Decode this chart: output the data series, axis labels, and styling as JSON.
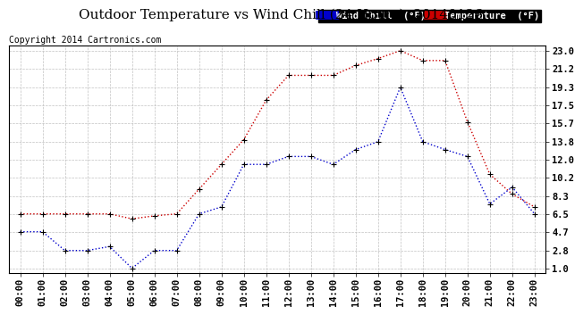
{
  "title": "Outdoor Temperature vs Wind Chill (24 Hours)  20140126",
  "copyright": "Copyright 2014 Cartronics.com",
  "legend_wind_chill": "Wind Chill  (°F)",
  "legend_temperature": "Temperature  (°F)",
  "x_labels": [
    "00:00",
    "01:00",
    "02:00",
    "03:00",
    "04:00",
    "05:00",
    "06:00",
    "07:00",
    "08:00",
    "09:00",
    "10:00",
    "11:00",
    "12:00",
    "13:00",
    "14:00",
    "15:00",
    "16:00",
    "17:00",
    "18:00",
    "19:00",
    "20:00",
    "21:00",
    "22:00",
    "23:00"
  ],
  "temperature": [
    6.5,
    6.5,
    6.5,
    6.5,
    6.5,
    6.0,
    6.3,
    6.5,
    9.0,
    11.5,
    14.0,
    18.0,
    20.5,
    20.5,
    20.5,
    21.5,
    22.2,
    23.0,
    22.0,
    22.0,
    15.8,
    10.5,
    8.5,
    7.2
  ],
  "wind_chill": [
    4.7,
    4.7,
    2.8,
    2.8,
    3.2,
    1.0,
    2.8,
    2.8,
    6.5,
    7.2,
    11.5,
    11.5,
    12.3,
    12.3,
    11.5,
    13.0,
    13.8,
    19.3,
    13.8,
    13.0,
    12.3,
    7.5,
    9.2,
    6.5
  ],
  "y_ticks": [
    1.0,
    2.8,
    4.7,
    6.5,
    8.3,
    10.2,
    12.0,
    13.8,
    15.7,
    17.5,
    19.3,
    21.2,
    23.0
  ],
  "ylim": [
    0.5,
    23.5
  ],
  "temp_color": "#cc0000",
  "wind_color": "#0000cc",
  "bg_color": "#ffffff",
  "plot_bg": "#ffffff",
  "grid_color": "#bbbbbb",
  "title_fontsize": 11,
  "copyright_fontsize": 7,
  "tick_fontsize": 7.5
}
